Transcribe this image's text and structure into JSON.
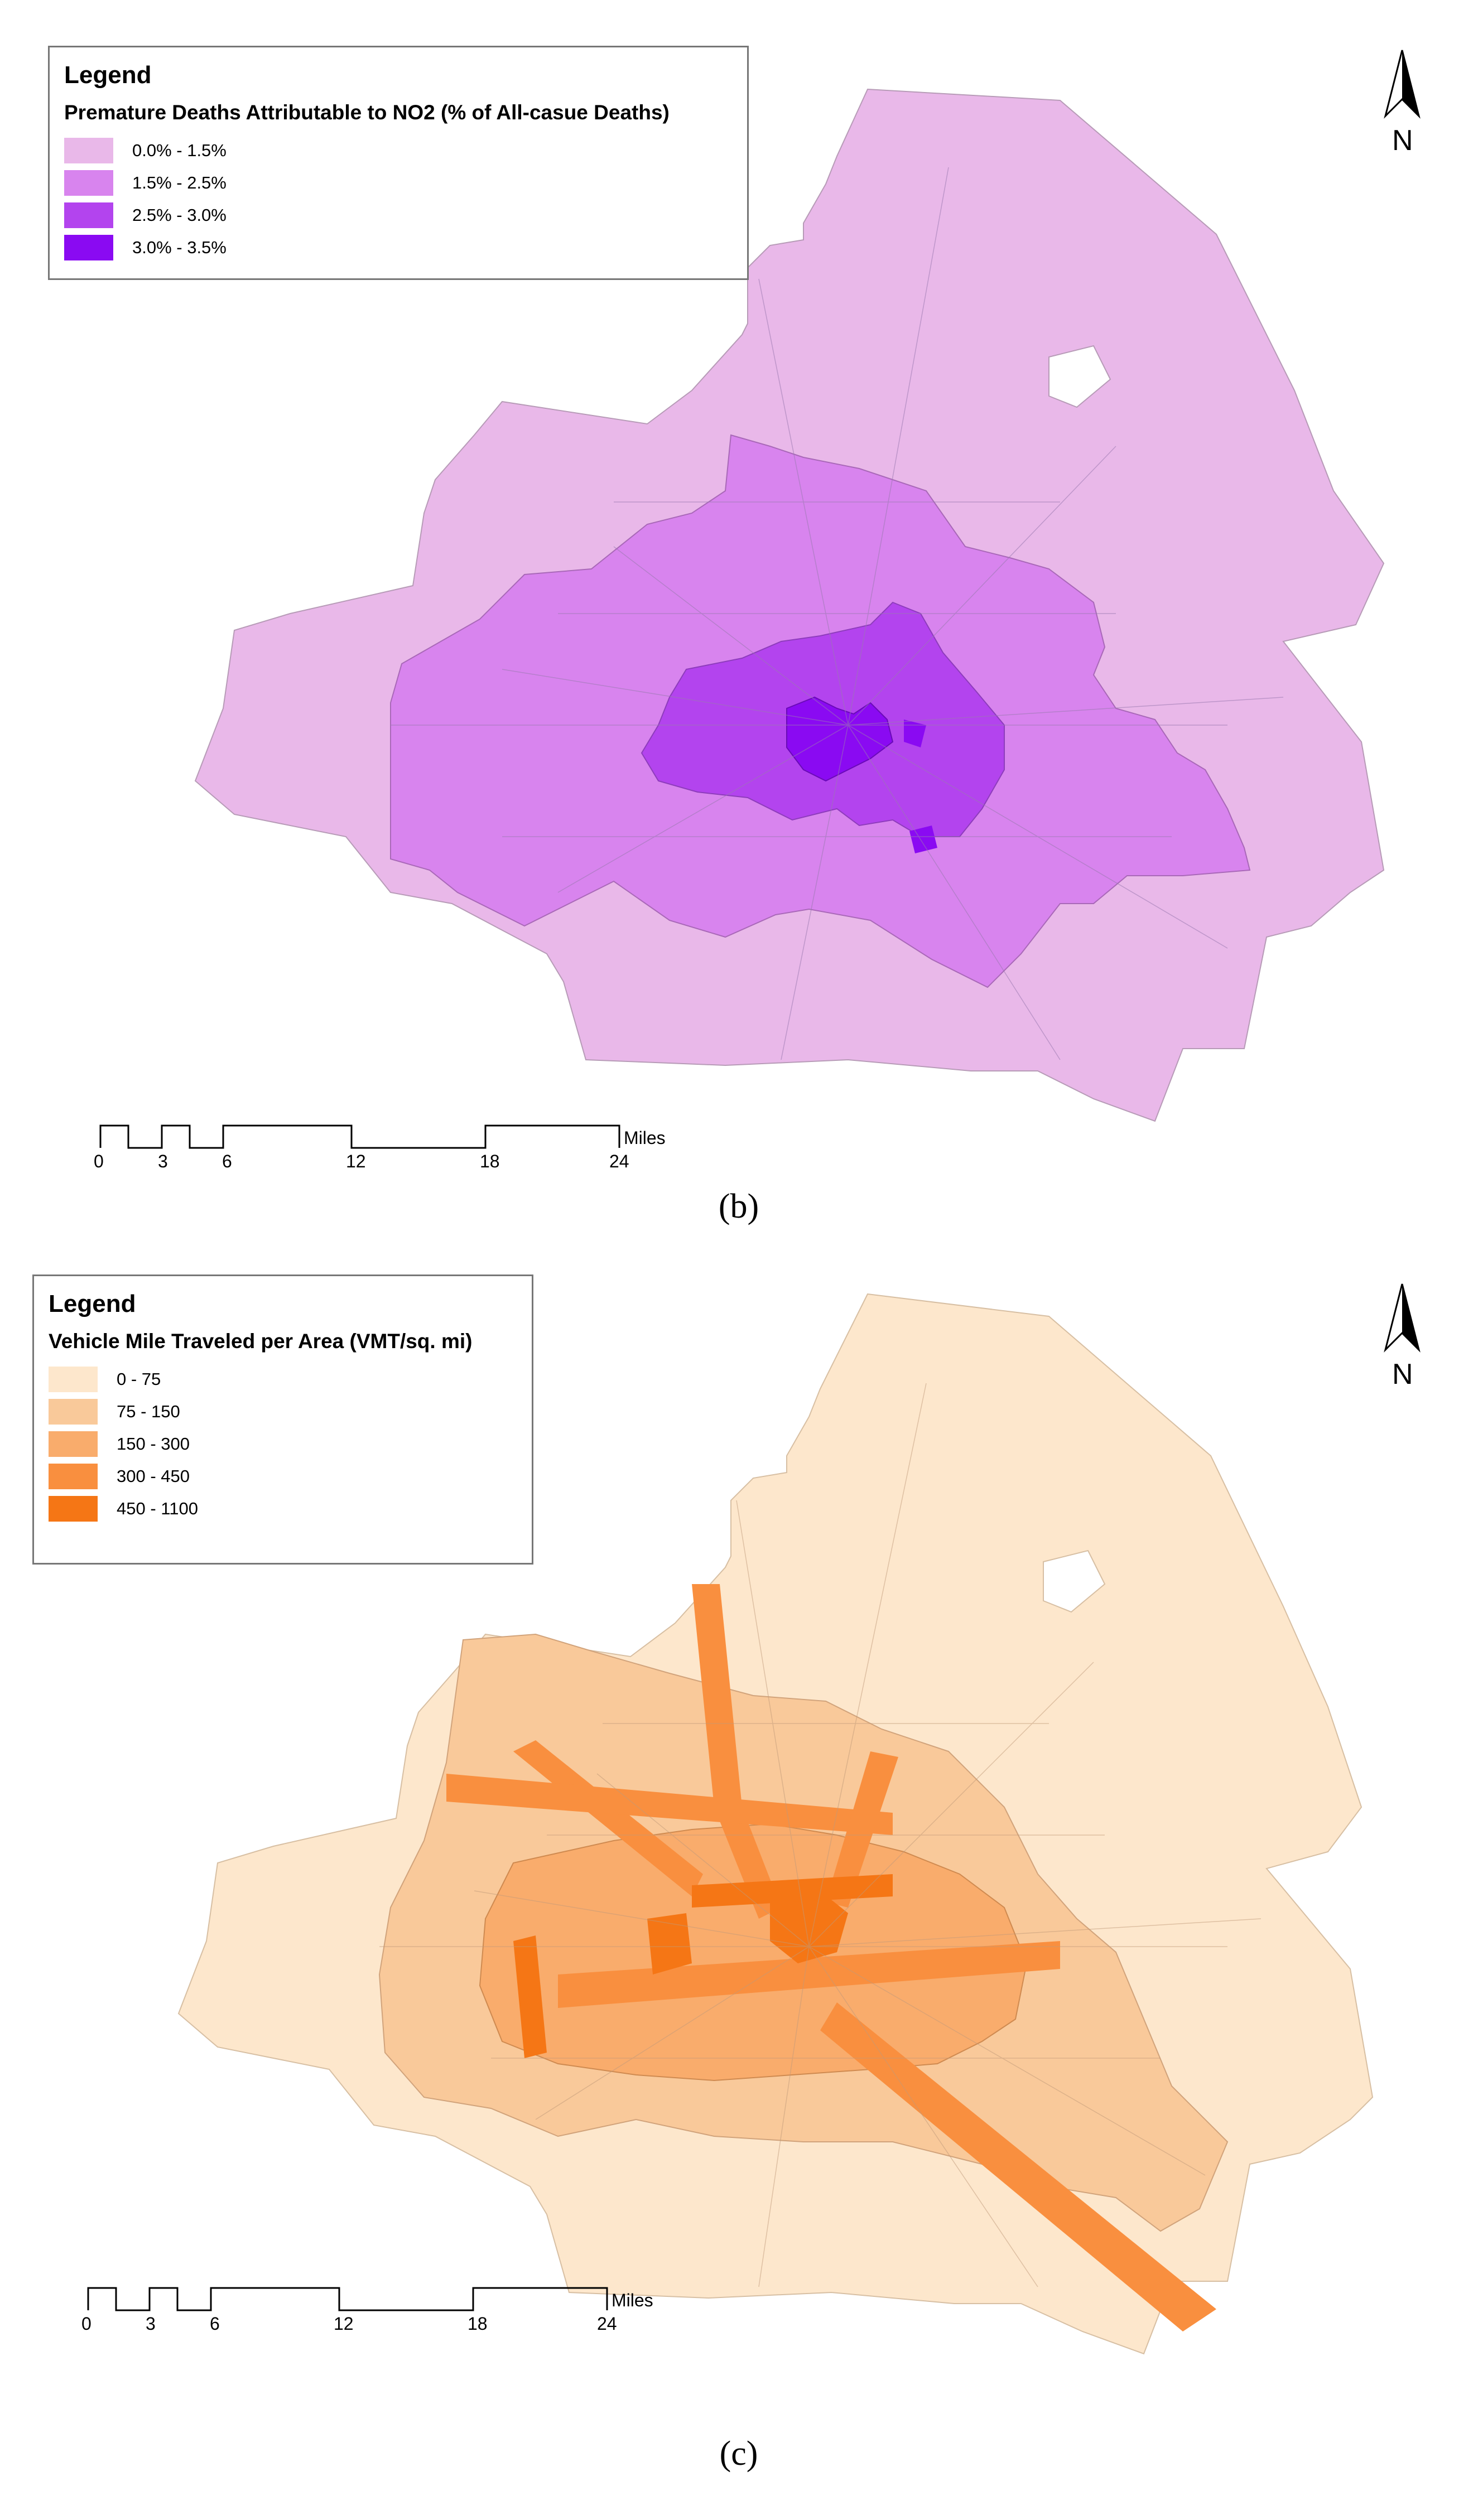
{
  "panels": [
    {
      "id": "b",
      "caption": "(b)",
      "legend": {
        "title": "Legend",
        "heading": "Premature Deaths Attributable to NO2 (% of All-casue Deaths)",
        "items": [
          {
            "label": "0.0% - 1.5%",
            "color": "#e9b8e9"
          },
          {
            "label": "1.5% - 2.5%",
            "color": "#d884ee"
          },
          {
            "label": "2.5% - 3.0%",
            "color": "#b344ee"
          },
          {
            "label": "3.0% - 3.5%",
            "color": "#8a0af2"
          }
        ]
      },
      "north_label": "N",
      "scale": {
        "ticks": [
          "0",
          "3",
          "6",
          "12",
          "18",
          "24"
        ],
        "unit": "Miles"
      }
    },
    {
      "id": "c",
      "caption": "(c)",
      "legend": {
        "title": "Legend",
        "heading": "Vehicle Mile Traveled per Area (VMT/sq. mi)",
        "items": [
          {
            "label": "0 - 75",
            "color": "#fde7cc"
          },
          {
            "label": "75 - 150",
            "color": "#f9c99a"
          },
          {
            "label": "150 - 300",
            "color": "#f9ac6c"
          },
          {
            "label": "300 - 450",
            "color": "#f98f3f"
          },
          {
            "label": "450 - 1100",
            "color": "#f57615"
          }
        ]
      },
      "north_label": "N",
      "scale": {
        "ticks": [
          "0",
          "3",
          "6",
          "12",
          "18",
          "24"
        ],
        "unit": "Miles"
      }
    }
  ]
}
